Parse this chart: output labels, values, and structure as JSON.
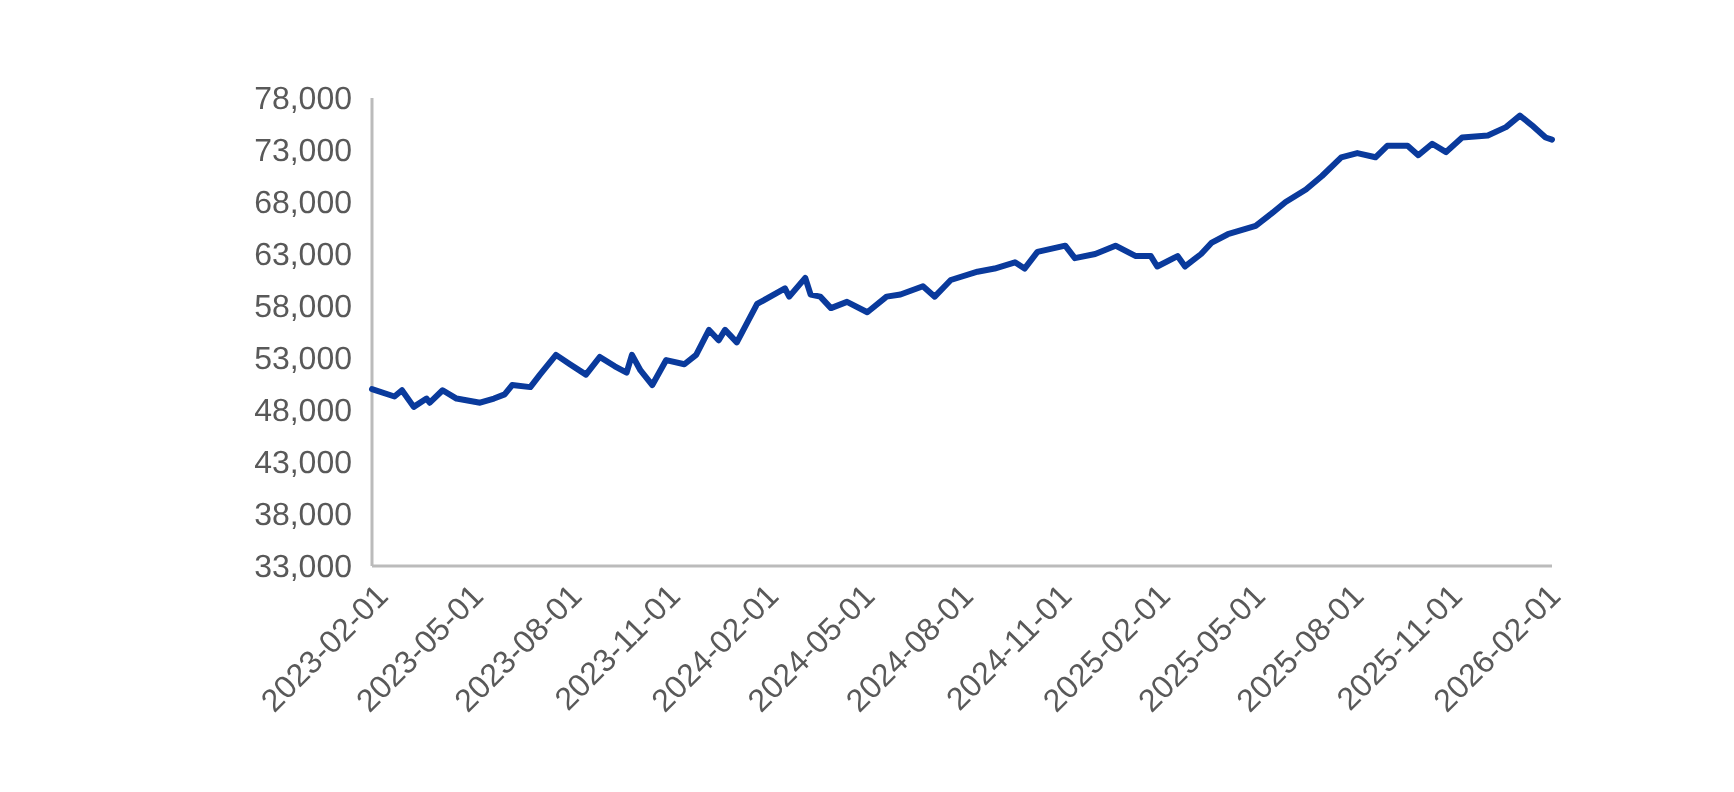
{
  "chart_data": {
    "type": "line",
    "x": [
      "2023-02-01",
      "2023-02-22",
      "2023-03-01",
      "2023-03-12",
      "2023-03-24",
      "2023-03-27",
      "2023-04-08",
      "2023-04-21",
      "2023-05-13",
      "2023-05-26",
      "2023-06-05",
      "2023-06-12",
      "2023-06-29",
      "2023-07-08",
      "2023-07-23",
      "2023-08-05",
      "2023-08-20",
      "2023-09-02",
      "2023-09-16",
      "2023-09-27",
      "2023-10-02",
      "2023-10-10",
      "2023-10-21",
      "2023-11-03",
      "2023-11-20",
      "2023-12-01",
      "2023-12-13",
      "2023-12-22",
      "2023-12-28",
      "2024-01-08",
      "2024-01-27",
      "2024-02-22",
      "2024-02-26",
      "2024-03-12",
      "2024-03-17",
      "2024-03-26",
      "2024-04-05",
      "2024-04-20",
      "2024-05-09",
      "2024-05-27",
      "2024-06-09",
      "2024-06-30",
      "2024-07-11",
      "2024-07-26",
      "2024-08-20",
      "2024-09-05",
      "2024-09-24",
      "2024-10-03",
      "2024-10-15",
      "2024-11-10",
      "2024-11-19",
      "2024-12-08",
      "2024-12-27",
      "2025-01-15",
      "2025-01-29",
      "2025-02-04",
      "2025-02-23",
      "2025-03-02",
      "2025-03-17",
      "2025-03-27",
      "2025-04-11",
      "2025-05-07",
      "2025-05-22",
      "2025-06-04",
      "2025-06-23",
      "2025-07-08",
      "2025-07-26",
      "2025-08-10",
      "2025-08-27",
      "2025-09-07",
      "2025-09-26",
      "2025-10-06",
      "2025-10-19",
      "2025-11-01",
      "2025-11-16",
      "2025-12-10",
      "2025-12-27",
      "2026-01-09",
      "2026-01-20",
      "2026-02-02",
      "2026-02-08"
    ],
    "series": [
      {
        "color": "#0a3a9c",
        "values": [
          50000,
          49300,
          49900,
          48300,
          49100,
          48700,
          49900,
          49100,
          48700,
          49100,
          49500,
          50400,
          50200,
          51400,
          53300,
          52400,
          51400,
          53100,
          52200,
          51600,
          53300,
          51800,
          50400,
          52800,
          52400,
          53300,
          55700,
          54700,
          55700,
          54500,
          58200,
          59700,
          58900,
          60700,
          59100,
          58900,
          57800,
          58400,
          57400,
          58900,
          59100,
          59900,
          58900,
          60500,
          61300,
          61600,
          62200,
          61600,
          63200,
          63800,
          62600,
          63000,
          63800,
          62800,
          62800,
          61800,
          62800,
          61800,
          63000,
          64100,
          64900,
          65700,
          66900,
          68000,
          69200,
          70500,
          72300,
          72700,
          72300,
          73400,
          73400,
          72500,
          73600,
          72800,
          74200,
          74400,
          75200,
          76300,
          75400,
          74200,
          74000
        ]
      }
    ],
    "xlim": [
      "2023-02-01",
      "2026-02-08"
    ],
    "xticks": [
      "2023-02-01",
      "2023-05-01",
      "2023-08-01",
      "2023-11-01",
      "2024-02-01",
      "2024-05-01",
      "2024-08-01",
      "2024-11-01",
      "2025-02-01",
      "2025-05-01",
      "2025-08-01",
      "2025-11-01",
      "2026-02-01"
    ],
    "ylim": [
      33000,
      78000
    ],
    "yticks": [
      {
        "value": 33000,
        "label": "33,000"
      },
      {
        "value": 38000,
        "label": "38,000"
      },
      {
        "value": 43000,
        "label": "43,000"
      },
      {
        "value": 48000,
        "label": "48,000"
      },
      {
        "value": 53000,
        "label": "53,000"
      },
      {
        "value": 58000,
        "label": "58,000"
      },
      {
        "value": 63000,
        "label": "63,000"
      },
      {
        "value": 68000,
        "label": "68,000"
      },
      {
        "value": 73000,
        "label": "73,000"
      },
      {
        "value": 78000,
        "label": "78,000"
      }
    ],
    "grid": false,
    "marker": "none",
    "line_style": "solid"
  }
}
